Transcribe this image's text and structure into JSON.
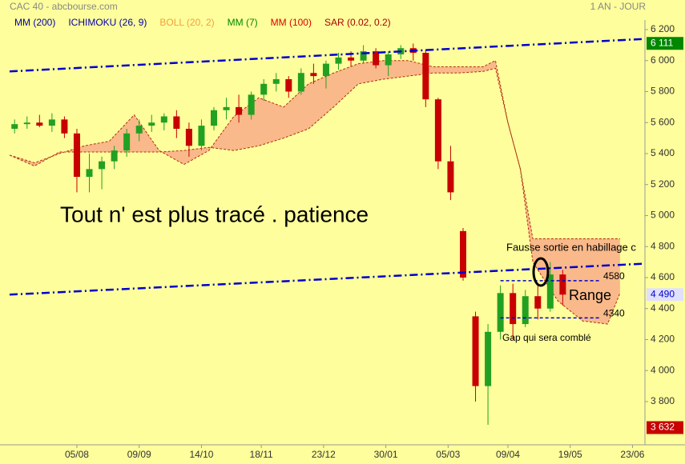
{
  "chart_data": {
    "type": "candlestick",
    "title": "CAC 40 - abcbourse.com",
    "period": "1 AN - JOUR",
    "indicators": [
      {
        "name": "MM (200)",
        "color": "#0000aa"
      },
      {
        "name": "ICHIMOKU (26, 9)",
        "color": "#0000aa"
      },
      {
        "name": "BOLL (20, 2)",
        "color": "#f0a040"
      },
      {
        "name": "MM (7)",
        "color": "#008800"
      },
      {
        "name": "MM (100)",
        "color": "#dd0000"
      },
      {
        "name": "SAR (0.02, 0.2)",
        "color": "#aa0000"
      }
    ],
    "up_color": "#22a022",
    "down_color": "#c80000",
    "x": [
      2,
      7,
      12,
      17,
      22,
      27,
      32,
      37,
      42,
      47,
      52,
      57,
      62,
      67,
      72,
      77,
      82,
      87,
      92,
      97,
      102,
      107,
      112,
      117,
      122,
      127,
      132,
      137,
      142,
      147,
      152,
      157,
      162,
      167,
      172,
      177,
      182,
      187,
      192,
      197,
      202,
      207,
      212,
      217,
      222
    ],
    "open": [
      5560,
      5590,
      5600,
      5580,
      5620,
      5530,
      5250,
      5300,
      5350,
      5420,
      5530,
      5580,
      5600,
      5640,
      5560,
      5450,
      5580,
      5680,
      5700,
      5650,
      5780,
      5850,
      5880,
      5800,
      5920,
      5900,
      5980,
      6020,
      6000,
      6060,
      5970,
      6040,
      6080,
      6050,
      5750,
      5350,
      4900,
      4350,
      3900,
      4250,
      4500,
      4300,
      4480,
      4400,
      4620
    ],
    "high": [
      5620,
      5640,
      5650,
      5660,
      5640,
      5560,
      5400,
      5380,
      5450,
      5560,
      5620,
      5650,
      5660,
      5680,
      5600,
      5620,
      5700,
      5760,
      5780,
      5800,
      5880,
      5920,
      5900,
      5950,
      5980,
      6000,
      6050,
      6060,
      6100,
      6080,
      6060,
      6100,
      6110,
      6070,
      5760,
      5450,
      4920,
      4380,
      4300,
      4550,
      4560,
      4520,
      4550,
      4700,
      4650
    ],
    "low": [
      5530,
      5560,
      5570,
      5540,
      5500,
      5150,
      5150,
      5170,
      5300,
      5380,
      5480,
      5540,
      5550,
      5500,
      5380,
      5420,
      5550,
      5620,
      5600,
      5620,
      5740,
      5800,
      5760,
      5780,
      5850,
      5820,
      5940,
      5960,
      5980,
      5950,
      5900,
      6010,
      6000,
      5700,
      5300,
      5100,
      4580,
      3800,
      3650,
      4200,
      4200,
      4280,
      4330,
      4380,
      4420
    ],
    "close": [
      5590,
      5600,
      5580,
      5620,
      5530,
      5250,
      5300,
      5350,
      5420,
      5530,
      5580,
      5600,
      5640,
      5560,
      5450,
      5580,
      5680,
      5700,
      5650,
      5780,
      5850,
      5880,
      5800,
      5920,
      5900,
      5980,
      6020,
      6000,
      6060,
      5970,
      6040,
      6080,
      6050,
      5750,
      5350,
      5150,
      4600,
      3900,
      4250,
      4500,
      4300,
      4480,
      4400,
      4620,
      4490
    ],
    "cloud": {
      "color": "#f9b98a",
      "line_color": "#b03010",
      "x": [
        0,
        10,
        20,
        30,
        40,
        50,
        60,
        70,
        80,
        90,
        100,
        110,
        120,
        130,
        140,
        150,
        160,
        170,
        180,
        190,
        195,
        200,
        205,
        210,
        220,
        230,
        240,
        245
      ],
      "span_a": [
        5390,
        5340,
        5400,
        5450,
        5480,
        5650,
        5420,
        5330,
        5420,
        5640,
        5760,
        5700,
        5850,
        5920,
        5980,
        6000,
        6000,
        5960,
        5960,
        5960,
        6000,
        5600,
        5300,
        4850,
        4850,
        4850,
        4850,
        4850
      ],
      "span_b": [
        5390,
        5320,
        5410,
        5410,
        5410,
        5410,
        5410,
        5420,
        5440,
        5420,
        5450,
        5500,
        5560,
        5700,
        5850,
        5880,
        5900,
        5920,
        5920,
        5930,
        5950,
        5600,
        5300,
        4700,
        4450,
        4320,
        4300,
        4500
      ]
    },
    "trendlines": [
      {
        "color": "#0000cc",
        "x": [
          0,
          255
        ],
        "y": [
          5930,
          6140
        ]
      },
      {
        "color": "#0000cc",
        "x": [
          0,
          255
        ],
        "y": [
          4490,
          4690
        ]
      }
    ],
    "levels": [
      {
        "value": 4580,
        "color": "#0000cc",
        "x": [
          197,
          237
        ]
      },
      {
        "value": 4340,
        "color": "#0000cc",
        "x": [
          197,
          237
        ]
      }
    ],
    "xlim": [
      0,
      255
    ],
    "ylim": [
      3550,
      6250
    ],
    "xticks": [
      {
        "value": 27,
        "label": "05/08"
      },
      {
        "value": 52,
        "label": "09/09"
      },
      {
        "value": 77,
        "label": "14/10"
      },
      {
        "value": 101,
        "label": "18/11"
      },
      {
        "value": 126,
        "label": "23/12"
      },
      {
        "value": 151,
        "label": "30/01"
      },
      {
        "value": 176,
        "label": "05/03"
      },
      {
        "value": 200,
        "label": "09/04"
      },
      {
        "value": 225,
        "label": "19/05"
      },
      {
        "value": 250,
        "label": "23/06"
      }
    ],
    "yticks": [
      {
        "value": 6200,
        "label": "6 200"
      },
      {
        "value": 6000,
        "label": "6 000"
      },
      {
        "value": 5800,
        "label": "5 800"
      },
      {
        "value": 5600,
        "label": "5 600"
      },
      {
        "value": 5400,
        "label": "5 400"
      },
      {
        "value": 5200,
        "label": "5 200"
      },
      {
        "value": 5000,
        "label": "5 000"
      },
      {
        "value": 4800,
        "label": "4 800"
      },
      {
        "value": 4600,
        "label": "4 600"
      },
      {
        "value": 4400,
        "label": "4 400"
      },
      {
        "value": 4200,
        "label": "4 200"
      },
      {
        "value": 4000,
        "label": "4 000"
      },
      {
        "value": 3800,
        "label": "3 800"
      }
    ],
    "price_tags": [
      {
        "value": 6111,
        "label": "6 111",
        "color": "#008800",
        "text_color": "#ffffff"
      },
      {
        "value": 4490,
        "label": "4 490",
        "color": "#e0e0ff",
        "text_color": "#0000cc"
      },
      {
        "value": 3632,
        "label": "3 632",
        "color": "#c80000",
        "text_color": "#ffffff"
      }
    ],
    "annotations": {
      "comment": "Tout n' est plus tracé . patience",
      "false_breakout": "Fausse sortie en habillage c",
      "range": "Range",
      "gap": "Gap qui sera comblé"
    }
  }
}
